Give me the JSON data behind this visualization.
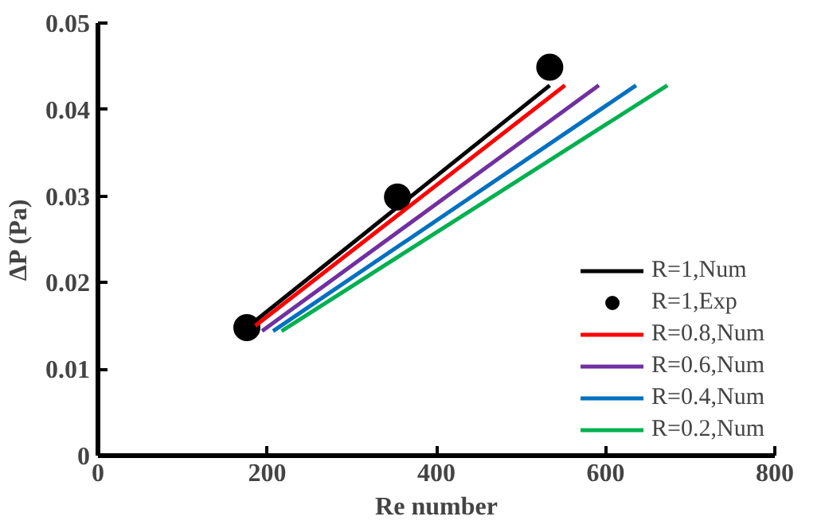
{
  "chart_data": {
    "type": "line",
    "xlabel": "Re number",
    "ylabel": "ΔP (Pa)",
    "xlim": [
      0,
      800
    ],
    "xticks": [
      0,
      200,
      400,
      600,
      800
    ],
    "ylim": [
      0,
      0.05
    ],
    "yticks": [
      0,
      0.01,
      0.02,
      0.03,
      0.04,
      0.05
    ],
    "grid": false,
    "legend": "bottom right",
    "line_style": "solid",
    "marker": "none",
    "series": [
      {
        "name": "R=1,Num",
        "color": "#000000",
        "x": [
          176,
          534
        ],
        "values": [
          0.0148,
          0.0428
        ]
      },
      {
        "name": "R=1,Exp",
        "color": "#000000",
        "type": "scatter",
        "marker": "circle",
        "x": [
          176,
          354,
          534
        ],
        "values": [
          0.0148,
          0.0299,
          0.0449
        ]
      },
      {
        "name": "R=0.8,Num",
        "color": "#ff0000",
        "x": [
          186,
          552
        ],
        "values": [
          0.015,
          0.0428
        ]
      },
      {
        "name": "R=0.6,Num",
        "color": "#7030a0",
        "x": [
          194,
          592
        ],
        "values": [
          0.0144,
          0.0428
        ]
      },
      {
        "name": "R=0.4,Num",
        "color": "#0070c0",
        "x": [
          207,
          636
        ],
        "values": [
          0.0144,
          0.0428
        ]
      },
      {
        "name": "R=0.2,Num",
        "color": "#00b050",
        "x": [
          217,
          673
        ],
        "values": [
          0.0144,
          0.0428
        ]
      }
    ]
  }
}
